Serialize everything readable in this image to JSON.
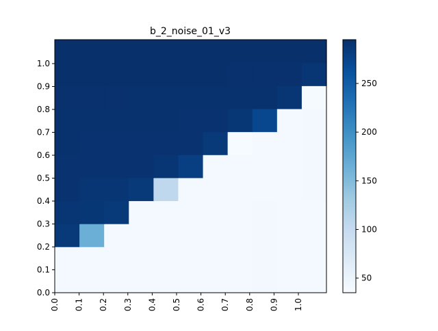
{
  "chart_data": {
    "type": "heatmap",
    "title": "b_2_noise_01_v3",
    "x_tick_labels": [
      "0.0",
      "0.1",
      "0.2",
      "0.3",
      "0.4",
      "0.5",
      "0.6",
      "0.7",
      "0.8",
      "0.9",
      "1.0"
    ],
    "y_tick_labels": [
      "0.0",
      "0.1",
      "0.2",
      "0.3",
      "0.4",
      "0.5",
      "0.6",
      "0.7",
      "0.8",
      "0.9",
      "1.0"
    ],
    "colorbar": {
      "vmin": 35,
      "vmax": 295,
      "ticks": [
        50,
        100,
        150,
        200,
        250
      ],
      "tick_labels": [
        "50",
        "100",
        "150",
        "200",
        "250"
      ],
      "colormap": "Blues"
    },
    "n_cols": 11,
    "rows_bottom_to_top": [
      [
        40,
        40,
        40,
        40,
        40,
        40,
        40,
        40,
        41,
        40,
        40
      ],
      [
        40,
        40,
        40,
        40,
        40,
        40,
        40,
        40,
        41,
        40,
        40
      ],
      [
        285,
        165,
        40,
        40,
        40,
        40,
        40,
        40,
        41,
        40,
        40
      ],
      [
        290,
        288,
        285,
        40,
        40,
        40,
        40,
        40,
        41,
        40,
        40
      ],
      [
        292,
        290,
        290,
        285,
        105,
        40,
        40,
        40,
        40,
        40,
        41
      ],
      [
        292,
        292,
        292,
        292,
        290,
        280,
        40,
        40,
        40,
        40,
        41
      ],
      [
        293,
        292,
        292,
        292,
        292,
        292,
        285,
        36,
        40,
        40,
        41
      ],
      [
        293,
        293,
        293,
        293,
        293,
        292,
        292,
        288,
        272,
        40,
        41
      ],
      [
        294,
        294,
        294,
        293,
        293,
        293,
        293,
        293,
        293,
        290,
        37
      ],
      [
        295,
        295,
        295,
        295,
        295,
        295,
        295,
        294,
        294,
        294,
        290
      ],
      [
        295,
        295,
        295,
        295,
        295,
        295,
        295,
        295,
        295,
        295,
        295
      ]
    ]
  }
}
